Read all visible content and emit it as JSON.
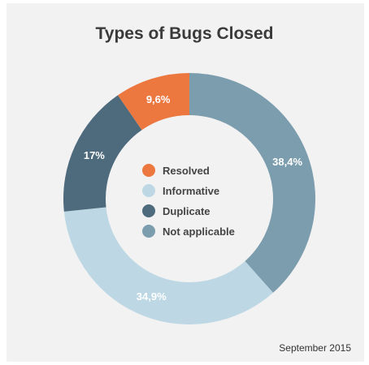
{
  "chart_data": {
    "type": "pie",
    "title": "Types of Bugs Closed",
    "note": "September 2015",
    "categories": [
      "Not applicable",
      "Informative",
      "Duplicate",
      "Resolved"
    ],
    "values": [
      38.4,
      34.9,
      17,
      9.6
    ],
    "value_labels": [
      "38,4%",
      "34,9%",
      "17%",
      "9,6%"
    ],
    "colors": [
      "#7b9dae",
      "#bdd8e4",
      "#4e6a7d",
      "#ec7840"
    ],
    "legend": [
      {
        "label": "Resolved",
        "color": "#ec7840"
      },
      {
        "label": "Informative",
        "color": "#bdd8e4"
      },
      {
        "label": "Duplicate",
        "color": "#4e6a7d"
      },
      {
        "label": "Not applicable",
        "color": "#7b9dae"
      }
    ],
    "legend_position": "center",
    "style": "donut"
  }
}
